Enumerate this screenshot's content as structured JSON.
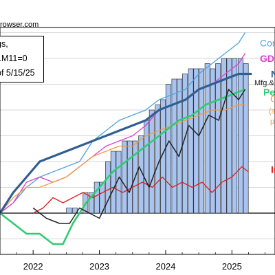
{
  "source_text": "rowser.com",
  "legend_box": [
    "gs,",
    "1M11=0",
    "of 5/15/25"
  ],
  "chart_data": {
    "type": "line",
    "xlabel": "",
    "ylabel": "",
    "x_ticks": [
      "2022",
      "2023",
      "2024",
      "2025"
    ],
    "x_range": [
      2021.5,
      2025.65
    ],
    "ylim": [
      -0.08,
      0.36
    ],
    "grid": "horizontal",
    "zero_line": true,
    "colors": {
      "bars": "#a9c4ee",
      "nfp": "#2f5e93",
      "consumption": "#4fa3e0",
      "gdp": "#e040d0",
      "personal_income": "#2ecc71",
      "mfg": "#222222",
      "orange": "#f29a3c",
      "industrial": "#dd2222"
    },
    "bars": {
      "name": "",
      "x": [
        2022.54,
        2022.63,
        2022.79,
        2022.88,
        2022.96,
        2023.04,
        2023.13,
        2023.21,
        2023.29,
        2023.38,
        2023.46,
        2023.54,
        2023.63,
        2023.71,
        2023.79,
        2023.88,
        2023.96,
        2024.04,
        2024.13,
        2024.21,
        2024.29,
        2024.38,
        2024.46,
        2024.54,
        2024.63,
        2024.71,
        2024.79,
        2024.88,
        2024.96,
        2025.04,
        2025.13,
        2025.21
      ],
      "values": [
        0.01,
        0.01,
        0.04,
        0.04,
        0.06,
        0.06,
        0.1,
        0.12,
        0.12,
        0.14,
        0.14,
        0.14,
        0.15,
        0.18,
        0.2,
        0.21,
        0.22,
        0.25,
        0.26,
        0.26,
        0.27,
        0.28,
        0.28,
        0.28,
        0.29,
        0.28,
        0.29,
        0.3,
        0.3,
        0.3,
        0.3,
        0.29
      ]
    },
    "series": [
      {
        "key": "consumption",
        "name": "Cor",
        "x": [
          2021.5,
          2021.7,
          2021.9,
          2022.1,
          2022.3,
          2022.5,
          2022.7,
          2022.9,
          2023.1,
          2023.3,
          2023.5,
          2023.7,
          2023.9,
          2024.1,
          2024.3,
          2024.5,
          2024.7,
          2024.9,
          2025.1,
          2025.2
        ],
        "y": [
          0.0,
          0.02,
          0.05,
          0.07,
          0.08,
          0.09,
          0.1,
          0.14,
          0.16,
          0.18,
          0.19,
          0.2,
          0.22,
          0.23,
          0.24,
          0.27,
          0.29,
          0.31,
          0.33,
          0.35
        ]
      },
      {
        "key": "gdp",
        "name": "GD",
        "x": [
          2021.5,
          2021.7,
          2021.9,
          2022.1,
          2022.3,
          2022.5,
          2022.7,
          2022.9,
          2023.1,
          2023.3,
          2023.5,
          2023.7,
          2023.9,
          2024.1,
          2024.3,
          2024.5,
          2024.7,
          2024.9,
          2025.1,
          2025.2
        ],
        "y": [
          0.0,
          0.02,
          0.06,
          0.07,
          0.06,
          0.07,
          0.09,
          0.11,
          0.13,
          0.14,
          0.15,
          0.17,
          0.2,
          0.21,
          0.22,
          0.24,
          0.25,
          0.27,
          0.29,
          0.31
        ]
      },
      {
        "key": "nfp",
        "name": "N",
        "x": [
          2021.5,
          2021.7,
          2021.9,
          2022.1,
          2022.3,
          2022.5,
          2022.7,
          2022.9,
          2023.1,
          2023.3,
          2023.5,
          2023.7,
          2023.9,
          2024.1,
          2024.3,
          2024.5,
          2024.7,
          2024.9,
          2025.1,
          2025.3
        ],
        "y": [
          0.0,
          0.04,
          0.07,
          0.1,
          0.11,
          0.12,
          0.13,
          0.14,
          0.15,
          0.16,
          0.17,
          0.18,
          0.2,
          0.21,
          0.22,
          0.24,
          0.25,
          0.26,
          0.27,
          0.27
        ]
      },
      {
        "key": "mfg",
        "name": "Mfg.&",
        "x": [
          2022.0,
          2022.2,
          2022.4,
          2022.55,
          2022.7,
          2022.85,
          2023.0,
          2023.15,
          2023.3,
          2023.45,
          2023.6,
          2023.75,
          2023.9,
          2024.05,
          2024.2,
          2024.35,
          2024.5,
          2024.65,
          2024.8,
          2024.95,
          2025.1,
          2025.2
        ],
        "y": [
          0.01,
          -0.01,
          -0.02,
          -0.02,
          0.01,
          0.0,
          -0.01,
          0.03,
          0.07,
          0.04,
          0.09,
          0.05,
          0.1,
          0.14,
          0.11,
          0.17,
          0.15,
          0.19,
          0.18,
          0.24,
          0.22,
          0.24
        ]
      },
      {
        "key": "personal_income",
        "name": "Pe",
        "x": [
          2021.5,
          2021.7,
          2021.9,
          2022.1,
          2022.3,
          2022.45,
          2022.6,
          2022.8,
          2023.0,
          2023.2,
          2023.4,
          2023.6,
          2023.8,
          2024.0,
          2024.2,
          2024.4,
          2024.6,
          2024.8,
          2025.0,
          2025.2
        ],
        "y": [
          0.0,
          -0.02,
          -0.04,
          -0.04,
          -0.06,
          -0.06,
          -0.02,
          0.02,
          0.05,
          0.08,
          0.1,
          0.12,
          0.14,
          0.16,
          0.18,
          0.19,
          0.21,
          0.22,
          0.23,
          0.24
        ]
      },
      {
        "key": "orange",
        "name": "O",
        "x": [
          2021.5,
          2021.7,
          2021.9,
          2022.1,
          2022.3,
          2022.5,
          2022.7,
          2022.9,
          2023.1,
          2023.3,
          2023.5,
          2023.7,
          2023.9,
          2024.1,
          2024.3,
          2024.5,
          2024.7,
          2024.9,
          2025.1,
          2025.2
        ],
        "y": [
          0.0,
          0.03,
          0.05,
          0.05,
          0.06,
          0.07,
          0.09,
          0.11,
          0.12,
          0.13,
          0.13,
          0.15,
          0.16,
          0.17,
          0.18,
          0.19,
          0.2,
          0.2,
          0.21,
          0.21
        ]
      },
      {
        "key": "industrial",
        "name": "Ir",
        "x": [
          2022.0,
          2022.15,
          2022.3,
          2022.45,
          2022.6,
          2022.75,
          2022.9,
          2023.05,
          2023.2,
          2023.35,
          2023.5,
          2023.65,
          2023.8,
          2023.95,
          2024.1,
          2024.25,
          2024.4,
          2024.55,
          2024.7,
          2024.85,
          2025.0,
          2025.15,
          2025.25
        ],
        "y": [
          0.0,
          0.01,
          0.03,
          0.02,
          0.03,
          0.04,
          0.03,
          0.04,
          0.05,
          0.04,
          0.05,
          0.06,
          0.05,
          0.07,
          0.05,
          0.06,
          0.05,
          0.06,
          0.04,
          0.06,
          0.07,
          0.09,
          0.08
        ]
      }
    ],
    "right_labels": [
      {
        "text": "Cor",
        "color": "#4fa3e0",
        "y": 0.33
      },
      {
        "text": "GD",
        "color": "#e040d0",
        "y": 0.3
      },
      {
        "text": "N",
        "color": "#2f5e93",
        "y": 0.27
      },
      {
        "text": "Mfg.&",
        "color": "#222222",
        "y": 0.255
      },
      {
        "text": "Pe",
        "color": "#2ecc71",
        "y": 0.235
      },
      {
        "text": "O",
        "color": "#f29a3c",
        "y": 0.222
      },
      {
        "text": "(s",
        "color": "#f29a3c",
        "y": 0.2
      },
      {
        "text": "p",
        "color": "#f29a3c",
        "y": 0.18
      },
      {
        "text": "Ir",
        "color": "#dd2222",
        "y": 0.085
      }
    ]
  }
}
